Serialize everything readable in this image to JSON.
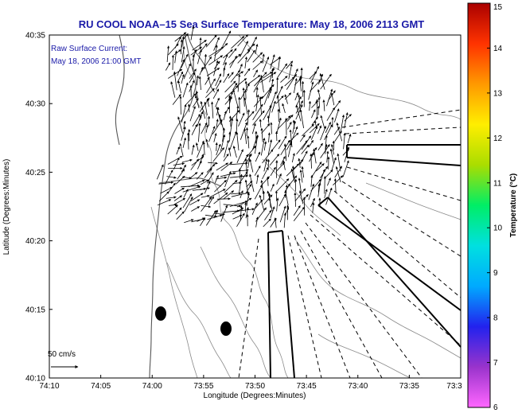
{
  "title": "RU COOL  NOAA–15  Sea Surface Temperature:  May 18, 2006 2113 GMT",
  "annotation": {
    "line1": "Raw Surface Current:",
    "line2": "May 18, 2006 21:00 GMT"
  },
  "axes": {
    "xlabel": "Longitude (Degrees:Minutes)",
    "ylabel": "Latitude (Degrees:Minutes)",
    "x_ticks": [
      "74:10",
      "74:05",
      "74:00",
      "73:55",
      "73:50",
      "73:45",
      "73:40",
      "73:35",
      "73:3"
    ],
    "y_ticks": [
      "40:35",
      "40:30",
      "40:25",
      "40:20",
      "40:15",
      "40:10"
    ]
  },
  "colorbar": {
    "label": "Temperature (°C)",
    "ticks": [
      "15",
      "14",
      "13",
      "12",
      "11",
      "10",
      "9",
      "8",
      "7",
      "6"
    ],
    "colors": [
      "#ff66ff",
      "#9933cc",
      "#2222ee",
      "#00aaff",
      "#00e0e0",
      "#00ee66",
      "#aadd00",
      "#ffee00",
      "#ff9900",
      "#ff3300",
      "#aa0000"
    ]
  },
  "scale_bar": {
    "label": "50 cm/s"
  },
  "markers": [
    {
      "name": "station-marker-west"
    },
    {
      "name": "station-marker-east"
    }
  ]
}
